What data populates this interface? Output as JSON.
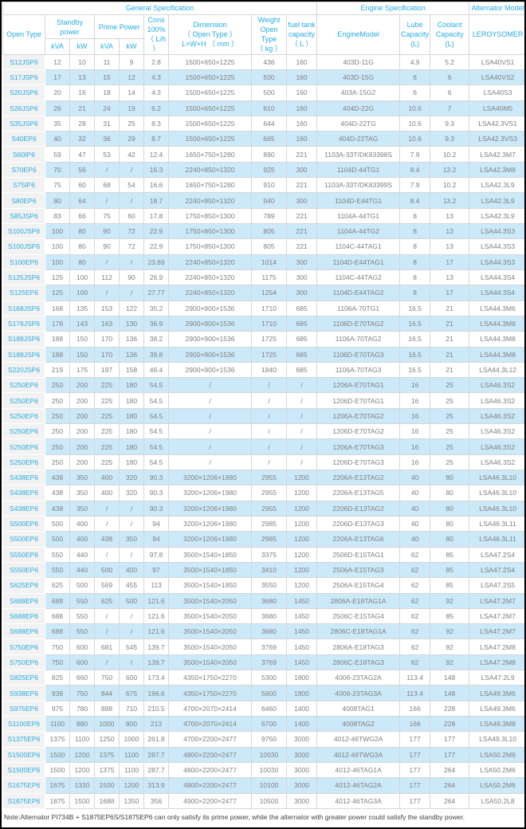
{
  "table": {
    "groups": {
      "general": "General Specification",
      "engine": "Engine Specification",
      "alternator": "Alternator Model"
    },
    "headers": {
      "open_type": "Open Type",
      "standby_power": "Standby\npower",
      "prime_power": "Prime Power",
      "kva": "kVA",
      "kw": "kW",
      "cons": "Cons\n100%\n（ L/h ）",
      "dimension": "Dimension\n（ Open Type ）\nL×W×H （ mm ）",
      "weight": "Weight\nOpen Type\n（ kg ）",
      "fuel_tank": "fuel tank\ncapacity\n（ L ）",
      "engine_model": "EngineModel",
      "lube_capacity": "Lube\nCapacity\n(L)",
      "coolant_capacity": "Coolant\nCapacity\n(L)",
      "alternator_model": "LEROYSOMER"
    },
    "rows": [
      [
        "S12JSP6",
        "12",
        "10",
        "11",
        "9",
        "2.8",
        "1500×650×1225",
        "436",
        "160",
        "403D-11G",
        "4.9",
        "5.2",
        "LSA40VS1"
      ],
      [
        "S17JSP6",
        "17",
        "13",
        "15",
        "12",
        "4.3",
        "1500×650×1225",
        "500",
        "160",
        "403D-15G",
        "6",
        "6",
        "LSA40VS2"
      ],
      [
        "S20JSP6",
        "20",
        "16",
        "18",
        "14",
        "4.3",
        "1500×650×1225",
        "500",
        "160",
        "403A-15G2",
        "6",
        "6",
        "LSA40S3"
      ],
      [
        "S26JSP6",
        "26",
        "21",
        "24",
        "19",
        "6.2",
        "1500×650×1225",
        "610",
        "160",
        "404D-22G",
        "10.6",
        "7",
        "LSA40M5"
      ],
      [
        "S35JSP6",
        "35",
        "28",
        "31",
        "25",
        "8.3",
        "1500×650×1225",
        "644",
        "160",
        "404D-22TG",
        "10.6",
        "9.3",
        "LSA42.3VS1"
      ],
      [
        "S40EP6",
        "40",
        "32",
        "36",
        "29",
        "8.7",
        "1500×650×1225",
        "665",
        "160",
        "404D-22TAG",
        "10.6",
        "9.3",
        "LSA42.3VS3"
      ],
      [
        "S60IP6",
        "59",
        "47",
        "53",
        "42",
        "12.4",
        "1650×750×1280",
        "890",
        "221",
        "1103A-33T/DK83398S",
        "7.9",
        "10.2",
        "LSA42.3M7"
      ],
      [
        "S70EP6",
        "70",
        "56",
        "/",
        "/",
        "16.3",
        "2240×850×1320",
        "925",
        "300",
        "1104D-44TG1",
        "8.4",
        "13.2",
        "LSA42.3M8"
      ],
      [
        "S75IP6",
        "75",
        "60",
        "68",
        "54",
        "16.6",
        "1650×750×1280",
        "910",
        "221",
        "1103A-33T/DK83399S",
        "7.9",
        "10.2",
        "LSA42.3L9"
      ],
      [
        "S80EP6",
        "80",
        "64",
        "/",
        "/",
        "18.7",
        "2240×850×1320",
        "940",
        "300",
        "1104D-E44TG1",
        "8.4",
        "13.2",
        "LSA42.3L9"
      ],
      [
        "S85JSP6",
        "83",
        "66",
        "75",
        "60",
        "17.8",
        "1750×850×1300",
        "789",
        "221",
        "1104A-44TG1",
        "8",
        "13",
        "LSA42.3L9"
      ],
      [
        "S100JSP6",
        "100",
        "80",
        "90",
        "72",
        "22.9",
        "1750×850×1300",
        "805",
        "221",
        "1104A-44TG2",
        "8",
        "13",
        "LSA44.3S3"
      ],
      [
        "S100JSP6",
        "100",
        "80",
        "90",
        "72",
        "22.9",
        "1750×850×1300",
        "805",
        "221",
        "1104C-44TAG1",
        "8",
        "13",
        "LSA44.3S3"
      ],
      [
        "S100EP6",
        "100",
        "80",
        "/",
        "/",
        "23.69",
        "2240×850×1320",
        "1014",
        "300",
        "1104D-E44TAG1",
        "8",
        "17",
        "LSA44.3S3"
      ],
      [
        "S125JSP6",
        "125",
        "100",
        "112",
        "90",
        "26.9",
        "2240×850×1320",
        "1175",
        "300",
        "1104C-44TAG2",
        "8",
        "13",
        "LSA44.3S4"
      ],
      [
        "S125EP6",
        "125",
        "100",
        "/",
        "/",
        "27.77",
        "2240×850×1320",
        "1254",
        "300",
        "1104D-E44TAG2",
        "8",
        "17",
        "LSA44.3S4"
      ],
      [
        "S168JSP6",
        "168",
        "135",
        "153",
        "122",
        "35.2",
        "2900×900×1536",
        "1710",
        "685",
        "1106A-70TG1",
        "16.5",
        "21",
        "LSA44.3M6"
      ],
      [
        "S178JSP6",
        "178",
        "143",
        "163",
        "130",
        "36.9",
        "2900×900×1536",
        "1710",
        "685",
        "1106D-E70TAG2",
        "16.5",
        "21",
        "LSA44.3M8"
      ],
      [
        "S188JSP6",
        "188",
        "150",
        "170",
        "136",
        "38.2",
        "2900×900×1536",
        "1725",
        "685",
        "1106A-70TAG2",
        "16.5",
        "21",
        "LSA44.3M8"
      ],
      [
        "S188JSP6",
        "188",
        "150",
        "170",
        "136",
        "39.8",
        "2900×900×1536",
        "1725",
        "685",
        "1106D-E70TAG3",
        "16.5",
        "21",
        "LSA44.3M8"
      ],
      [
        "S220JSP6",
        "219",
        "175",
        "197",
        "158",
        "46.4",
        "2900×900×1536",
        "1840",
        "685",
        "1106A-70TAG3",
        "16.5",
        "21",
        "LSA44.3L12"
      ],
      [
        "S250EP6",
        "250",
        "200",
        "225",
        "180",
        "54.5",
        "/",
        "/",
        "/",
        "1206A-E70TAG1",
        "16",
        "25",
        "LSA46.3S2"
      ],
      [
        "S250EP6",
        "250",
        "200",
        "225",
        "180",
        "54.5",
        "/",
        "/",
        "/",
        "1206D-E70TAG1",
        "16",
        "25",
        "LSA46.3S2"
      ],
      [
        "S250EP6",
        "250",
        "200",
        "225",
        "180",
        "54.5",
        "/",
        "/",
        "/",
        "1206A-E70TAG2",
        "16",
        "25",
        "LSA46.3S2"
      ],
      [
        "S250EP6",
        "250",
        "200",
        "225",
        "180",
        "54.5",
        "/",
        "/",
        "/",
        "1206D-E70TAG2",
        "16",
        "25",
        "LSA46.3S2"
      ],
      [
        "S250EP6",
        "250",
        "200",
        "225",
        "180",
        "54.5",
        "/",
        "/",
        "/",
        "1206A-E70TAG3",
        "16",
        "25",
        "LSA46.3S2"
      ],
      [
        "S250EP6",
        "250",
        "200",
        "225",
        "180",
        "54.5",
        "/",
        "/",
        "/",
        "1206D-E70TAG3",
        "16",
        "25",
        "LSA46.3S2"
      ],
      [
        "S438EP6",
        "438",
        "350",
        "400",
        "320",
        "90.3",
        "3200×1206×1980",
        "2955",
        "1200",
        "2206A-E13TAG2",
        "40",
        "80",
        "LSA46.3L10"
      ],
      [
        "S438EP6",
        "438",
        "350",
        "400",
        "320",
        "90.3",
        "3200×1206×1980",
        "2955",
        "1200",
        "2206A-E13TAG5",
        "40",
        "80",
        "LSA46.3L10"
      ],
      [
        "S438EP6",
        "438",
        "350",
        "/",
        "/",
        "90.3",
        "3200×1206×1980",
        "2955",
        "1200",
        "2206D-E13TAG2",
        "40",
        "80",
        "LSA46.3L10"
      ],
      [
        "S500EP6",
        "500",
        "400",
        "/",
        "/",
        "94",
        "3200×1206×1980",
        "2985",
        "1200",
        "2206D-E13TAG3",
        "40",
        "80",
        "LSA46.3L11"
      ],
      [
        "S500EP6",
        "500",
        "400",
        "438",
        "350",
        "94",
        "3200×1206×1980",
        "2985",
        "1200",
        "2206A-E13TAG6",
        "40",
        "80",
        "LSA46.3L11"
      ],
      [
        "S550EP6",
        "550",
        "440",
        "/",
        "/",
        "97.8",
        "3500×1540×1850",
        "3375",
        "1200",
        "2506D-E15TAG1",
        "62",
        "85",
        "LSA47.2S4"
      ],
      [
        "S550EP6",
        "550",
        "440",
        "500",
        "400",
        "97",
        "3500×1540×1850",
        "3410",
        "1200",
        "2506A-E15TAG3",
        "62",
        "85",
        "LSA47.2S4"
      ],
      [
        "S625EP6",
        "625",
        "500",
        "569",
        "455",
        "113",
        "3500×1540×1850",
        "3550",
        "1200",
        "2506A-E15TAG4",
        "62",
        "85",
        "LSA47.2S5"
      ],
      [
        "S688EP6",
        "688",
        "550",
        "625",
        "500",
        "121.6",
        "3500×1540×2050",
        "3680",
        "1450",
        "2806A-E18TAG1A",
        "62",
        "92",
        "LSA47.2M7"
      ],
      [
        "S688EP6",
        "688",
        "550",
        "/",
        "/",
        "121.6",
        "3500×1540×2050",
        "3680",
        "1450",
        "2506C-E15TAG4",
        "62",
        "85",
        "LSA47.2M7"
      ],
      [
        "S688EP6",
        "688",
        "550",
        "/",
        "/",
        "121.6",
        "3500×1540×2050",
        "3680",
        "1450",
        "2806C-E18TAG1A",
        "62",
        "92",
        "LSA47.2M7"
      ],
      [
        "S750EP6",
        "750",
        "600",
        "681",
        "545",
        "139.7",
        "3500×1540×2050",
        "3769",
        "1450",
        "2806A-E18TAG3",
        "62",
        "92",
        "LSA47.2M8"
      ],
      [
        "S750EP6",
        "750",
        "600",
        "/",
        "/",
        "139.7",
        "3500×1540×2050",
        "3769",
        "1450",
        "2806C-E18TAG3",
        "62",
        "92",
        "LSA47.2M8"
      ],
      [
        "S825EP6",
        "825",
        "660",
        "750",
        "600",
        "173.4",
        "4350×1750×2270",
        "5300",
        "1800",
        "4006-23TAG2A",
        "113.4",
        "148",
        "LSA47.2L9"
      ],
      [
        "S938EP6",
        "938",
        "750",
        "844",
        "675",
        "196.6",
        "4350×1750×2270",
        "5600",
        "1800",
        "4006-23TAG3A",
        "113.4",
        "148",
        "LSA49.3M6"
      ],
      [
        "S975EP6",
        "975",
        "780",
        "888",
        "710",
        "210.5",
        "4700×2070×2414",
        "6460",
        "1400",
        "4008TAG1",
        "166",
        "228",
        "LSA49.3M6"
      ],
      [
        "S1100EP6",
        "1100",
        "880",
        "1000",
        "800",
        "213",
        "4700×2070×2414",
        "6700",
        "1400",
        "4008TAG2",
        "166",
        "228",
        "LSA49.3M8"
      ],
      [
        "S1375EP6",
        "1375",
        "1100",
        "1250",
        "1000",
        "261.8",
        "4700×2200×2477",
        "9750",
        "3000",
        "4012-46TWG2A",
        "177",
        "177",
        "LSA49.3L10"
      ],
      [
        "S1500EP6",
        "1500",
        "1200",
        "1375",
        "1100",
        "287.7",
        "4800×2200×2477",
        "10030",
        "3000",
        "4012-46TWG3A",
        "177",
        "177",
        "LSA50.2M6"
      ],
      [
        "S1500EP6",
        "1500",
        "1200",
        "1375",
        "1100",
        "287.7",
        "4800×2200×2477",
        "10030",
        "3000",
        "4012-46TAG1A",
        "177",
        "264",
        "LSA50.2M6"
      ],
      [
        "S1675EP6",
        "1675",
        "1330",
        "1500",
        "1200",
        "313.9",
        "4800×2200×2477",
        "10100",
        "3000",
        "4012-46TAG2A",
        "177",
        "264",
        "LSA50.2M6"
      ],
      [
        "S1875EP6",
        "1875",
        "1500",
        "1688",
        "1350",
        "356",
        "4900×2200×2477",
        "10500",
        "3000",
        "4012-46TAG3A",
        "177",
        "264",
        "LSA50.2L8"
      ]
    ]
  },
  "note": "Note:Alternator PI734B + S1875EP6S/S1875EP6 can only satisfy its prime power, while the alternator with greater power could satisfy the standby power.",
  "colors": {
    "header_text": "#29abe2",
    "model_link_text": "#29abe2",
    "alt_row_bg": "#cce9f9",
    "model_col_bg": "#f2f2f2",
    "data_text": "#7f7f7f"
  }
}
